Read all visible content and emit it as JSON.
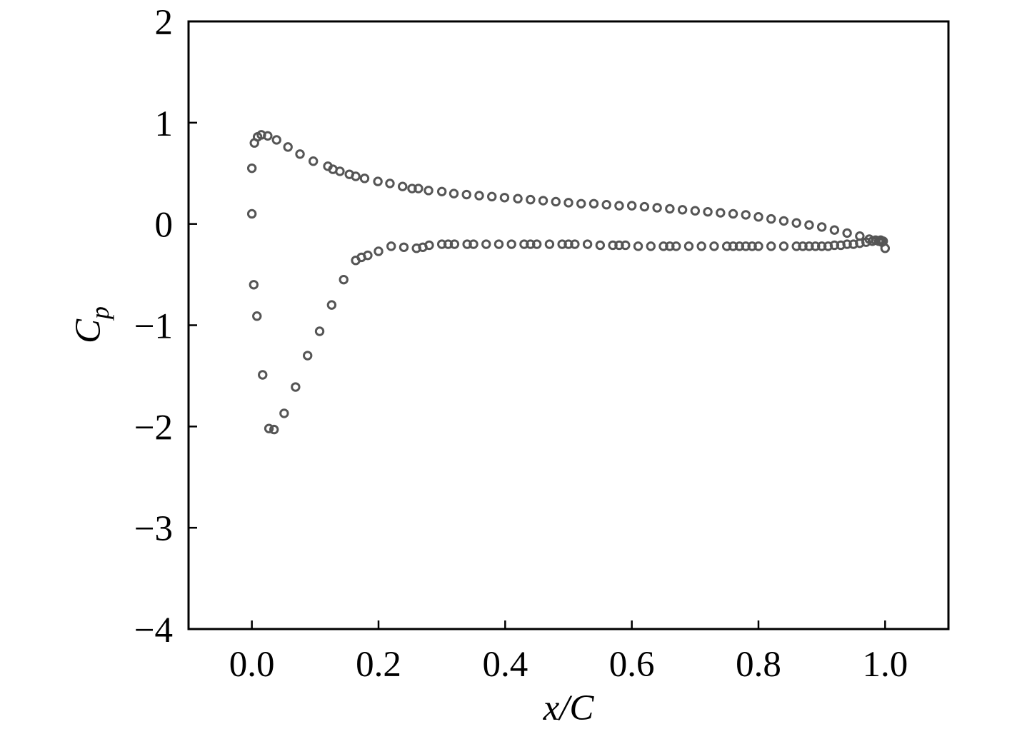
{
  "chart_data": {
    "type": "scatter",
    "title": "",
    "xlabel": "x/C",
    "ylabel_main": "C",
    "ylabel_sub": "p",
    "xlim": [
      -0.1,
      1.1
    ],
    "ylim": [
      -4,
      2
    ],
    "x_ticks": [
      0.0,
      0.2,
      0.4,
      0.6,
      0.8,
      1.0
    ],
    "x_tick_labels": [
      "0.0",
      "0.2",
      "0.4",
      "0.6",
      "0.8",
      "1.0"
    ],
    "y_ticks": [
      2,
      1,
      0,
      -1,
      -2,
      -3,
      -4
    ],
    "y_tick_labels": [
      "2",
      "1",
      "0",
      "−1",
      "−2",
      "−3",
      "−4"
    ],
    "grid": false,
    "marker": "open-circle",
    "marker_color": "#555555",
    "series": [
      {
        "x": [
          0.0,
          0.0,
          0.004,
          0.009,
          0.015,
          0.025,
          0.039,
          0.057,
          0.076,
          0.097,
          0.12,
          0.128,
          0.139,
          0.154,
          0.164,
          0.178,
          0.199,
          0.218,
          0.238,
          0.253,
          0.263,
          0.279,
          0.3,
          0.319,
          0.339,
          0.359,
          0.379,
          0.399,
          0.42,
          0.44,
          0.46,
          0.48,
          0.5,
          0.52,
          0.54,
          0.56,
          0.58,
          0.6,
          0.62,
          0.64,
          0.66,
          0.68,
          0.7,
          0.72,
          0.74,
          0.76,
          0.78,
          0.8,
          0.82,
          0.84,
          0.86,
          0.88,
          0.9,
          0.92,
          0.94,
          0.96,
          0.975,
          0.985,
          0.993,
          0.997
        ],
        "y": [
          0.1,
          0.55,
          0.8,
          0.86,
          0.88,
          0.87,
          0.83,
          0.76,
          0.69,
          0.62,
          0.57,
          0.54,
          0.52,
          0.49,
          0.47,
          0.45,
          0.42,
          0.4,
          0.37,
          0.35,
          0.35,
          0.33,
          0.32,
          0.3,
          0.29,
          0.28,
          0.27,
          0.26,
          0.25,
          0.24,
          0.23,
          0.22,
          0.21,
          0.2,
          0.2,
          0.19,
          0.18,
          0.18,
          0.17,
          0.16,
          0.15,
          0.14,
          0.13,
          0.12,
          0.11,
          0.1,
          0.09,
          0.07,
          0.05,
          0.03,
          0.01,
          -0.01,
          -0.03,
          -0.06,
          -0.09,
          -0.12,
          -0.15,
          -0.16,
          -0.16,
          -0.17
        ]
      },
      {
        "x": [
          0.003,
          0.008,
          0.017,
          0.027,
          0.035,
          0.051,
          0.069,
          0.088,
          0.107,
          0.126,
          0.145,
          0.164,
          0.173,
          0.183,
          0.2,
          0.22,
          0.24,
          0.26,
          0.27,
          0.28,
          0.3,
          0.31,
          0.32,
          0.34,
          0.35,
          0.37,
          0.39,
          0.41,
          0.43,
          0.44,
          0.45,
          0.47,
          0.49,
          0.5,
          0.51,
          0.53,
          0.55,
          0.57,
          0.58,
          0.59,
          0.61,
          0.63,
          0.65,
          0.66,
          0.67,
          0.69,
          0.71,
          0.73,
          0.75,
          0.76,
          0.77,
          0.78,
          0.79,
          0.8,
          0.82,
          0.84,
          0.86,
          0.87,
          0.88,
          0.89,
          0.9,
          0.91,
          0.92,
          0.93,
          0.94,
          0.95,
          0.96,
          0.97,
          0.98,
          0.99,
          0.995,
          1.0
        ],
        "y": [
          -0.6,
          -0.91,
          -1.49,
          -2.02,
          -2.03,
          -1.87,
          -1.61,
          -1.3,
          -1.06,
          -0.8,
          -0.55,
          -0.36,
          -0.33,
          -0.31,
          -0.27,
          -0.22,
          -0.23,
          -0.24,
          -0.23,
          -0.21,
          -0.2,
          -0.2,
          -0.2,
          -0.2,
          -0.2,
          -0.2,
          -0.2,
          -0.2,
          -0.2,
          -0.2,
          -0.2,
          -0.2,
          -0.2,
          -0.2,
          -0.2,
          -0.2,
          -0.21,
          -0.21,
          -0.21,
          -0.21,
          -0.22,
          -0.22,
          -0.22,
          -0.22,
          -0.22,
          -0.22,
          -0.22,
          -0.22,
          -0.22,
          -0.22,
          -0.22,
          -0.22,
          -0.22,
          -0.22,
          -0.22,
          -0.22,
          -0.22,
          -0.22,
          -0.22,
          -0.22,
          -0.22,
          -0.22,
          -0.21,
          -0.21,
          -0.2,
          -0.2,
          -0.19,
          -0.18,
          -0.17,
          -0.17,
          -0.18,
          -0.24
        ]
      }
    ]
  }
}
